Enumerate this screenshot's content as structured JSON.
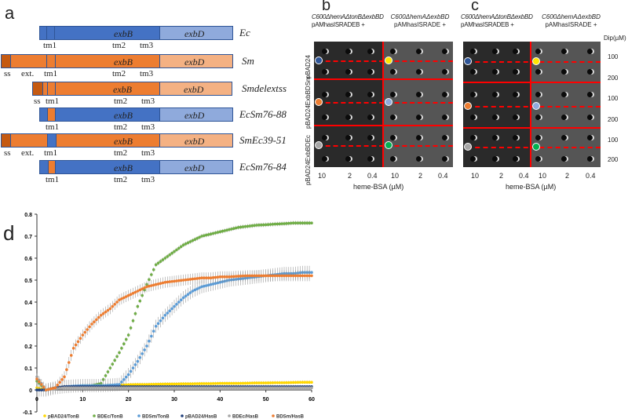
{
  "panel_a": {
    "label": "a",
    "gene_b": "exbB",
    "gene_d": "exbD",
    "rows": [
      {
        "name": "Ec",
        "labels": [
          "tm1",
          "tm2",
          "tm3"
        ]
      },
      {
        "name": "Sm",
        "labels": [
          "ss",
          "ext.",
          "tm1",
          "tm2",
          "tm3"
        ]
      },
      {
        "name": "Smdelextss",
        "labels": [
          "ss",
          "tm1",
          "tm2",
          "tm3"
        ]
      },
      {
        "name": "EcSm76-88",
        "labels": [
          "tm1",
          "tm2",
          "tm3"
        ]
      },
      {
        "name": "SmEc39-51",
        "labels": [
          "ss",
          "ext.",
          "tm1",
          "tm2",
          "tm3"
        ]
      },
      {
        "name": "EcSm76-84",
        "labels": [
          "tm1",
          "tm2",
          "tm3"
        ]
      }
    ]
  },
  "panel_b": {
    "label": "b",
    "left_header": [
      "C600ΔhemAΔtonBΔexbBD",
      "pAMhasISRADEB +"
    ],
    "right_header": [
      "C600ΔhemAΔexbBD",
      "pAMhasISRADE +"
    ],
    "strains": [
      "pBAD24",
      "pBAD24ExbBDSm",
      "pBAD24ExbBDEc"
    ],
    "columns": [
      "10",
      "2",
      "0.4",
      "10",
      "2",
      "0.4"
    ],
    "xlabel": "heme-BSA (µM)",
    "markers": [
      "#2F5597",
      "#FFE500",
      "#ED7D31",
      "#8FAADC",
      "#A6A6A6",
      "#00B050"
    ]
  },
  "panel_c": {
    "label": "c",
    "left_header": [
      "C600ΔhemAΔtonBΔexbBD",
      "pAMhasISRADEB +"
    ],
    "right_header": [
      "C600ΔhemAΔexbBD",
      "pAMhasISRADE +"
    ],
    "columns": [
      "10",
      "2",
      "0.4",
      "10",
      "2",
      "0.4"
    ],
    "xlabel": "heme-BSA (µM)",
    "dip_label": "Dip(µM)",
    "dip_values": [
      "100",
      "200",
      "100",
      "200",
      "100",
      "200"
    ],
    "markers": [
      "#2F5597",
      "#FFE500",
      "#ED7D31",
      "#8FAADC",
      "#A6A6A6",
      "#00B050"
    ]
  },
  "panel_d": {
    "label": "d"
  },
  "chart_data": {
    "type": "scatter",
    "xlim": [
      0,
      60
    ],
    "ylim": [
      -0.1,
      0.8
    ],
    "xticks": [
      "0",
      "10",
      "20",
      "30",
      "40",
      "50",
      "60"
    ],
    "yticks": [
      "-0.1",
      "0",
      "0.1",
      "0.2",
      "0.3",
      "0.4",
      "0.5",
      "0.6",
      "0.7",
      "0.8"
    ],
    "legend_position": "bottom",
    "x": [
      0,
      2,
      4,
      6,
      8,
      10,
      12,
      14,
      16,
      18,
      20,
      22,
      24,
      26,
      28,
      30,
      32,
      34,
      36,
      38,
      40,
      42,
      44,
      46,
      48,
      50,
      52,
      54,
      56,
      58,
      60
    ],
    "series": [
      {
        "name": "pBAD24/TonB",
        "color": "#FFD700",
        "error": 0.008,
        "values": [
          0.01,
          0.0,
          0.01,
          0.015,
          0.015,
          0.018,
          0.02,
          0.02,
          0.022,
          0.022,
          0.024,
          0.025,
          0.025,
          0.026,
          0.027,
          0.027,
          0.028,
          0.028,
          0.029,
          0.029,
          0.03,
          0.03,
          0.03,
          0.031,
          0.032,
          0.032,
          0.033,
          0.033,
          0.034,
          0.035,
          0.035
        ]
      },
      {
        "name": "BDEc/TonB",
        "color": "#70AD47",
        "error": 0.01,
        "values": [
          0.04,
          0.0,
          0.01,
          0.015,
          0.015,
          0.02,
          0.02,
          0.03,
          0.1,
          0.17,
          0.25,
          0.38,
          0.48,
          0.57,
          0.6,
          0.63,
          0.66,
          0.68,
          0.7,
          0.71,
          0.72,
          0.73,
          0.74,
          0.745,
          0.75,
          0.752,
          0.755,
          0.757,
          0.76,
          0.76,
          0.76
        ]
      },
      {
        "name": "BDSm/TonB",
        "color": "#5B9BD5",
        "error": 0.03,
        "values": [
          0.0,
          0.0,
          0.01,
          0.015,
          0.018,
          0.02,
          0.02,
          0.02,
          0.022,
          0.025,
          0.07,
          0.13,
          0.2,
          0.29,
          0.34,
          0.38,
          0.42,
          0.45,
          0.47,
          0.48,
          0.49,
          0.5,
          0.505,
          0.51,
          0.515,
          0.52,
          0.525,
          0.53,
          0.53,
          0.535,
          0.535
        ]
      },
      {
        "name": "pBAD24/HasB",
        "color": "#1F3E7A",
        "error": 0.005,
        "values": [
          0.0,
          0.0,
          0.01,
          0.015,
          0.015,
          0.015,
          0.015,
          0.015,
          0.015,
          0.015,
          0.015,
          0.015,
          0.015,
          0.015,
          0.015,
          0.015,
          0.015,
          0.015,
          0.015,
          0.015,
          0.015,
          0.015,
          0.015,
          0.015,
          0.015,
          0.015,
          0.015,
          0.015,
          0.015,
          0.015,
          0.015
        ]
      },
      {
        "name": "BDEc/HasB",
        "color": "#A6A6A6",
        "error": 0.006,
        "values": [
          0.06,
          0.0,
          0.005,
          0.01,
          0.01,
          0.01,
          0.01,
          0.01,
          0.01,
          0.01,
          0.01,
          0.01,
          0.01,
          0.01,
          0.01,
          0.01,
          0.01,
          0.01,
          0.01,
          0.01,
          0.01,
          0.01,
          0.01,
          0.01,
          0.01,
          0.01,
          0.01,
          0.01,
          0.01,
          0.01,
          0.01
        ]
      },
      {
        "name": "BDSm/HasB",
        "color": "#ED7D31",
        "error": 0.025,
        "values": [
          0.05,
          0.0,
          0.01,
          0.06,
          0.19,
          0.25,
          0.3,
          0.34,
          0.37,
          0.41,
          0.43,
          0.45,
          0.47,
          0.48,
          0.49,
          0.495,
          0.5,
          0.505,
          0.51,
          0.51,
          0.515,
          0.515,
          0.518,
          0.52,
          0.52,
          0.52,
          0.52,
          0.52,
          0.52,
          0.52,
          0.52
        ]
      }
    ]
  }
}
